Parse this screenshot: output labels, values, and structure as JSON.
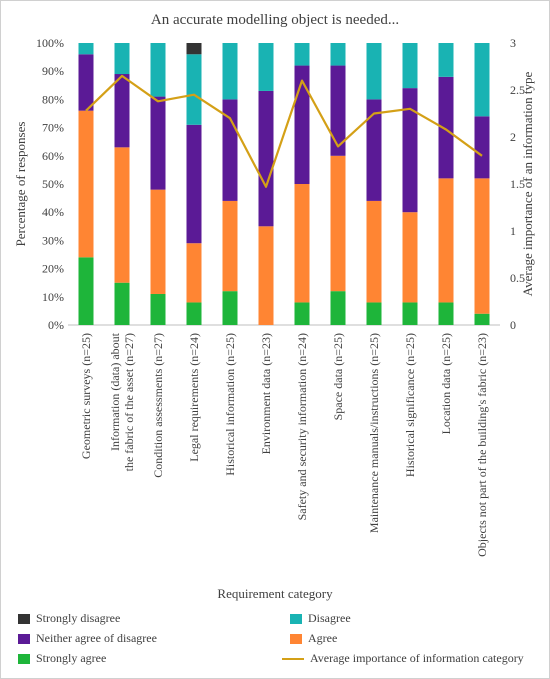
{
  "chart_data": {
    "type": "bar",
    "stacked": true,
    "title": "An accurate modelling object is needed...",
    "xlabel": "Requirement category",
    "ylabel": "Percentage of  responses",
    "y2label": "Average importance of an information type",
    "ylim": [
      0,
      100
    ],
    "y2lim": [
      0,
      3
    ],
    "yticks": [
      "0%",
      "10%",
      "20%",
      "30%",
      "40%",
      "50%",
      "60%",
      "70%",
      "80%",
      "90%",
      "100%"
    ],
    "y2ticks": [
      "0",
      "0.5",
      "1",
      "1.5",
      "2",
      "2.5",
      "3"
    ],
    "categories": [
      "Geometric surveys (n=25)",
      "Information (data) about the fabric of the asset (n=27)",
      "Condition assessments (n=27)",
      "Legal requirements (n=24)",
      "Historical information (n=25)",
      "Environment data (n=23)",
      "Safety and security information (n=24)",
      "Space data (n=25)",
      "Maintenance manuals/instructions (n=25)",
      "Historical significance (n=25)",
      "Location data (n=25)",
      "Objects not part of the building's fabric (n=23)"
    ],
    "category_lines": [
      [
        "Geometric surveys (n=25)"
      ],
      [
        "Information (data) about",
        "the fabric of the asset (n=27)"
      ],
      [
        "Condition assessments (n=27)"
      ],
      [
        "Legal requirements (n=24)"
      ],
      [
        "Historical information (n=25)"
      ],
      [
        "Environment data (n=23)"
      ],
      [
        "Safety and security information (n=24)"
      ],
      [
        "Space data (n=25)"
      ],
      [
        "Maintenance manuals/instructions (n=25)"
      ],
      [
        "Historical significance (n=25)"
      ],
      [
        "Location data (n=25)"
      ],
      [
        "Objects not part of the building's fabric (n=23)"
      ]
    ],
    "series": [
      {
        "name": "Strongly agree",
        "color": "#1eb53a",
        "values": [
          24,
          15,
          11,
          8,
          12,
          0,
          8,
          12,
          8,
          8,
          8,
          4
        ]
      },
      {
        "name": "Agree",
        "color": "#ff8533",
        "values": [
          52,
          48,
          37,
          21,
          32,
          35,
          42,
          48,
          36,
          32,
          44,
          48
        ]
      },
      {
        "name": "Neither agree of disagree",
        "color": "#5b1a96",
        "values": [
          20,
          26,
          33,
          42,
          36,
          48,
          42,
          32,
          36,
          44,
          36,
          22
        ]
      },
      {
        "name": "Disagree",
        "color": "#19b3b3",
        "values": [
          4,
          11,
          19,
          25,
          20,
          17,
          8,
          8,
          20,
          16,
          12,
          26
        ]
      },
      {
        "name": "Strongly disagree",
        "color": "#333333",
        "values": [
          0,
          0,
          0,
          4,
          0,
          0,
          0,
          0,
          0,
          0,
          0,
          0
        ]
      }
    ],
    "line": {
      "name": "Average importance of information category",
      "color": "#d4a017",
      "axis": "right",
      "values": [
        2.28,
        2.65,
        2.38,
        2.45,
        2.2,
        1.47,
        2.6,
        1.9,
        2.25,
        2.3,
        2.08,
        1.8
      ]
    },
    "legend": [
      {
        "name": "Strongly disagree",
        "color": "#333333",
        "kind": "box"
      },
      {
        "name": "Disagree",
        "color": "#19b3b3",
        "kind": "box"
      },
      {
        "name": "Neither agree of disagree",
        "color": "#5b1a96",
        "kind": "box"
      },
      {
        "name": "Agree",
        "color": "#ff8533",
        "kind": "box"
      },
      {
        "name": "Strongly agree",
        "color": "#1eb53a",
        "kind": "box"
      },
      {
        "name": "Average importance of information category",
        "color": "#d4a017",
        "kind": "line"
      }
    ],
    "legend_position": "bottom",
    "grid": false
  }
}
